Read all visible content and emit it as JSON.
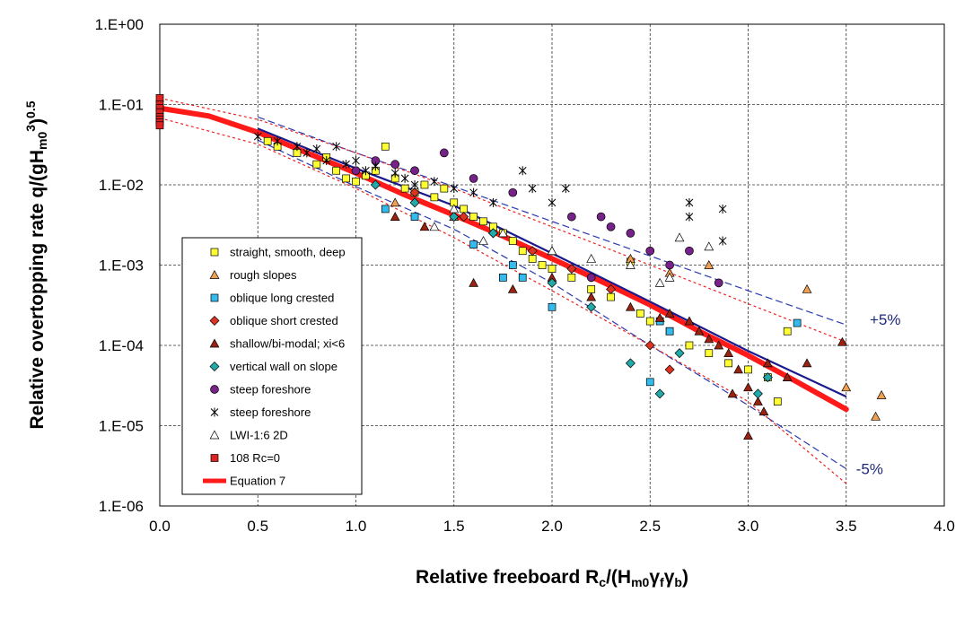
{
  "chart_data": {
    "type": "scatter",
    "xlabel": "Relative freeboard R_c/(H_m0 γ_f γ_b)",
    "xlabel_parts": {
      "main": "Relative freeboard R",
      "sub1": "c",
      "mid": "/(H",
      "sub2": "m0",
      "gammas": "γ",
      "sub3": "f",
      "gamma2": "γ",
      "sub4": "b",
      "close": ")"
    },
    "ylabel": "Relative overtopping rate q/(gH_m0^3)^0.5",
    "ylabel_parts": {
      "main": "Relative overtopping rate q/(gH",
      "sub": "m0",
      "sup": "3",
      "close": ")",
      "sup2": "0.5"
    },
    "x_ticks": [
      "0.0",
      "0.5",
      "1.0",
      "1.5",
      "2.0",
      "2.5",
      "3.0",
      "3.5",
      "4.0"
    ],
    "y_ticks": [
      "1.E+00",
      "1.E-01",
      "1.E-02",
      "1.E-03",
      "1.E-04",
      "1.E-05",
      "1.E-06"
    ],
    "xlim": [
      0,
      4
    ],
    "ylim_log10": [
      -6,
      0
    ],
    "y_scale": "log",
    "grid": true,
    "legend_position": "left-center",
    "annotations": {
      "plus": "+5%",
      "minus": "-5%"
    },
    "series": [
      {
        "name": "straight, smooth, deep",
        "marker": "square",
        "color": "#ffff33",
        "points": [
          [
            0.55,
            0.035
          ],
          [
            0.6,
            0.03
          ],
          [
            0.7,
            0.025
          ],
          [
            0.8,
            0.018
          ],
          [
            0.85,
            0.022
          ],
          [
            0.9,
            0.015
          ],
          [
            0.95,
            0.012
          ],
          [
            1.0,
            0.011
          ],
          [
            1.05,
            0.013
          ],
          [
            1.1,
            0.015
          ],
          [
            1.15,
            0.03
          ],
          [
            1.2,
            0.012
          ],
          [
            1.25,
            0.009
          ],
          [
            1.3,
            0.008
          ],
          [
            1.35,
            0.01
          ],
          [
            1.4,
            0.007
          ],
          [
            1.45,
            0.009
          ],
          [
            1.5,
            0.006
          ],
          [
            1.55,
            0.005
          ],
          [
            1.6,
            0.004
          ],
          [
            1.65,
            0.0035
          ],
          [
            1.7,
            0.003
          ],
          [
            1.75,
            0.0025
          ],
          [
            1.8,
            0.002
          ],
          [
            1.85,
            0.0015
          ],
          [
            1.9,
            0.0012
          ],
          [
            1.95,
            0.001
          ],
          [
            2.0,
            0.0009
          ],
          [
            2.1,
            0.0007
          ],
          [
            2.2,
            0.0005
          ],
          [
            2.3,
            0.0004
          ],
          [
            2.4,
            0.0011
          ],
          [
            2.45,
            0.00025
          ],
          [
            2.5,
            0.0002
          ],
          [
            2.6,
            0.00015
          ],
          [
            2.7,
            0.0001
          ],
          [
            2.8,
            8e-05
          ],
          [
            2.9,
            6e-05
          ],
          [
            3.0,
            5e-05
          ],
          [
            3.1,
            4e-05
          ],
          [
            3.15,
            2e-05
          ],
          [
            3.2,
            0.00015
          ]
        ]
      },
      {
        "name": "rough slopes",
        "marker": "triangle",
        "color": "#f0a050",
        "points": [
          [
            1.2,
            0.006
          ],
          [
            1.5,
            0.004
          ],
          [
            2.0,
            0.0015
          ],
          [
            2.4,
            0.0012
          ],
          [
            2.6,
            0.0008
          ],
          [
            2.8,
            0.001
          ],
          [
            3.3,
            0.0005
          ],
          [
            3.5,
            3e-05
          ],
          [
            3.65,
            1.3e-05
          ],
          [
            3.68,
            2.4e-05
          ]
        ]
      },
      {
        "name": "oblique long crested",
        "marker": "square",
        "color": "#33bbee",
        "points": [
          [
            1.15,
            0.005
          ],
          [
            1.3,
            0.004
          ],
          [
            1.6,
            0.0018
          ],
          [
            1.75,
            0.0007
          ],
          [
            1.8,
            0.001
          ],
          [
            1.85,
            0.0007
          ],
          [
            2.0,
            0.0003
          ],
          [
            2.5,
            3.5e-05
          ],
          [
            2.55,
            0.0002
          ],
          [
            2.6,
            0.00015
          ],
          [
            3.25,
            0.00019
          ]
        ]
      },
      {
        "name": "oblique short crested",
        "marker": "diamond",
        "color": "#dd3322",
        "points": [
          [
            1.3,
            0.008
          ],
          [
            1.55,
            0.004
          ],
          [
            1.7,
            0.0025
          ],
          [
            1.9,
            0.0015
          ],
          [
            2.1,
            0.0009
          ],
          [
            2.3,
            0.0005
          ],
          [
            2.5,
            0.0001
          ],
          [
            2.6,
            5e-05
          ]
        ]
      },
      {
        "name": "shallow/bi-modal; xi<6",
        "marker": "triangle",
        "color": "#992211",
        "points": [
          [
            1.2,
            0.004
          ],
          [
            1.35,
            0.003
          ],
          [
            1.6,
            0.0006
          ],
          [
            1.8,
            0.0005
          ],
          [
            2.0,
            0.0007
          ],
          [
            2.2,
            0.0004
          ],
          [
            2.4,
            0.0003
          ],
          [
            2.55,
            0.00022
          ],
          [
            2.6,
            0.00025
          ],
          [
            2.7,
            0.0002
          ],
          [
            2.75,
            0.00015
          ],
          [
            2.8,
            0.00012
          ],
          [
            2.85,
            0.0001
          ],
          [
            2.9,
            8e-05
          ],
          [
            2.95,
            5e-05
          ],
          [
            3.0,
            3e-05
          ],
          [
            3.05,
            2e-05
          ],
          [
            3.1,
            6e-05
          ],
          [
            3.2,
            4e-05
          ],
          [
            3.3,
            6e-05
          ],
          [
            3.48,
            0.00011
          ],
          [
            3.0,
            7.5e-06
          ],
          [
            3.08,
            1.5e-05
          ],
          [
            2.92,
            2.5e-05
          ]
        ]
      },
      {
        "name": "vertical wall on slope",
        "marker": "diamond",
        "color": "#22aaaa",
        "points": [
          [
            1.1,
            0.01
          ],
          [
            1.3,
            0.006
          ],
          [
            1.5,
            0.004
          ],
          [
            1.7,
            0.0025
          ],
          [
            2.0,
            0.0006
          ],
          [
            2.2,
            0.0003
          ],
          [
            2.4,
            6e-05
          ],
          [
            2.55,
            2.5e-05
          ],
          [
            2.65,
            8e-05
          ],
          [
            3.05,
            2.5e-05
          ],
          [
            3.1,
            4e-05
          ]
        ]
      },
      {
        "name": "steep foreshore",
        "marker": "circle",
        "color": "#772288",
        "points": [
          [
            1.0,
            0.015
          ],
          [
            1.1,
            0.02
          ],
          [
            1.2,
            0.018
          ],
          [
            1.3,
            0.015
          ],
          [
            1.45,
            0.025
          ],
          [
            1.6,
            0.012
          ],
          [
            1.8,
            0.008
          ],
          [
            2.1,
            0.004
          ],
          [
            2.25,
            0.004
          ],
          [
            2.3,
            0.003
          ],
          [
            2.4,
            0.0025
          ],
          [
            2.5,
            0.0015
          ],
          [
            2.6,
            0.001
          ],
          [
            2.7,
            0.0015
          ],
          [
            2.85,
            0.0006
          ],
          [
            2.2,
            0.0007
          ]
        ]
      },
      {
        "name": "steep foreshore",
        "marker": "star",
        "color": "#000000",
        "points": [
          [
            0.5,
            0.04
          ],
          [
            0.6,
            0.035
          ],
          [
            0.7,
            0.03
          ],
          [
            0.75,
            0.025
          ],
          [
            0.8,
            0.028
          ],
          [
            0.85,
            0.02
          ],
          [
            0.9,
            0.03
          ],
          [
            0.95,
            0.018
          ],
          [
            1.0,
            0.02
          ],
          [
            1.05,
            0.015
          ],
          [
            1.1,
            0.017
          ],
          [
            1.2,
            0.014
          ],
          [
            1.25,
            0.012
          ],
          [
            1.3,
            0.01
          ],
          [
            1.4,
            0.011
          ],
          [
            1.5,
            0.009
          ],
          [
            1.6,
            0.008
          ],
          [
            1.7,
            0.006
          ],
          [
            1.85,
            0.015
          ],
          [
            1.9,
            0.009
          ],
          [
            2.0,
            0.006
          ],
          [
            2.07,
            0.009
          ],
          [
            2.7,
            0.006
          ],
          [
            2.7,
            0.004
          ],
          [
            2.87,
            0.005
          ],
          [
            2.87,
            0.002
          ]
        ]
      },
      {
        "name": "LWI-1:6 2D",
        "marker": "triangle-open",
        "color": "#ffffff",
        "points": [
          [
            1.4,
            0.003
          ],
          [
            1.5,
            0.005
          ],
          [
            1.65,
            0.002
          ],
          [
            1.75,
            0.0025
          ],
          [
            2.0,
            0.0015
          ],
          [
            2.2,
            0.0012
          ],
          [
            2.4,
            0.001
          ],
          [
            2.55,
            0.0006
          ],
          [
            2.6,
            0.0007
          ],
          [
            2.65,
            0.0022
          ],
          [
            2.8,
            0.0017
          ]
        ]
      },
      {
        "name": "108 Rc=0",
        "marker": "square",
        "color": "#dd2222",
        "points": [
          [
            0.0,
            0.12
          ],
          [
            0.0,
            0.1
          ],
          [
            0.0,
            0.09
          ],
          [
            0.0,
            0.08
          ],
          [
            0.0,
            0.07
          ],
          [
            0.0,
            0.065
          ],
          [
            0.0,
            0.06
          ],
          [
            0.0,
            0.055
          ]
        ]
      }
    ],
    "lines": [
      {
        "name": "Equation 7",
        "color": "#ff1a1a",
        "style": "thick",
        "x": [
          0.0,
          0.25,
          0.5,
          0.75,
          1.0,
          1.25,
          1.5,
          1.75,
          2.0,
          2.25,
          2.5,
          2.75,
          3.0,
          3.25,
          3.5
        ],
        "y": [
          0.09,
          0.072,
          0.045,
          0.025,
          0.014,
          0.0075,
          0.0042,
          0.0023,
          0.0012,
          0.00063,
          0.00032,
          0.00015,
          7.5e-05,
          3.5e-05,
          1.6e-05
        ]
      },
      {
        "name": "",
        "color": "#1a1a8c",
        "style": "solid",
        "x": [
          0.5,
          1.0,
          1.5,
          2.0,
          2.5,
          3.0,
          3.5
        ],
        "y": [
          0.05,
          0.016,
          0.0055,
          0.0014,
          0.00035,
          8.5e-05,
          2.3e-05
        ]
      },
      {
        "name": "",
        "color": "#2a3ab0",
        "style": "dash",
        "x": [
          0.5,
          1.0,
          1.5,
          2.0,
          2.5,
          3.0,
          3.5
        ],
        "y": [
          0.07,
          0.025,
          0.0095,
          0.0035,
          0.0013,
          0.00048,
          0.00018
        ]
      },
      {
        "name": "",
        "color": "#2a3ab0",
        "style": "dash",
        "x": [
          0.5,
          1.0,
          1.5,
          2.0,
          2.5,
          3.0,
          3.5
        ],
        "y": [
          0.036,
          0.0095,
          0.0028,
          0.0006,
          0.0001,
          1.8e-05,
          2.9e-06
        ]
      },
      {
        "name": "",
        "color": "#ee2222",
        "style": "dot",
        "x": [
          0.0,
          0.5,
          1.0,
          1.5,
          2.0,
          2.5,
          3.0,
          3.5
        ],
        "y": [
          0.12,
          0.065,
          0.025,
          0.009,
          0.003,
          0.001,
          0.00033,
          0.00011
        ]
      },
      {
        "name": "",
        "color": "#ee2222",
        "style": "dot",
        "x": [
          0.0,
          0.5,
          1.0,
          1.5,
          2.0,
          2.5,
          3.0,
          3.5
        ],
        "y": [
          0.068,
          0.032,
          0.009,
          0.0022,
          0.00048,
          0.0001,
          2e-05,
          1.9e-06
        ]
      }
    ],
    "legend": [
      {
        "label": "straight, smooth, deep",
        "marker": "square",
        "color": "#ffff33"
      },
      {
        "label": "rough slopes",
        "marker": "triangle",
        "color": "#f0a050"
      },
      {
        "label": "oblique long crested",
        "marker": "square",
        "color": "#33bbee"
      },
      {
        "label": "oblique short crested",
        "marker": "diamond",
        "color": "#dd3322"
      },
      {
        "label": "shallow/bi-modal; xi<6",
        "marker": "triangle",
        "color": "#992211"
      },
      {
        "label": "vertical wall on slope",
        "marker": "diamond",
        "color": "#22aaaa"
      },
      {
        "label": "steep foreshore",
        "marker": "circle",
        "color": "#772288"
      },
      {
        "label": "steep foreshore",
        "marker": "star",
        "color": "#000000"
      },
      {
        "label": "LWI-1:6 2D",
        "marker": "triangle-open",
        "color": "#ffffff"
      },
      {
        "label": "108 Rc=0",
        "marker": "square",
        "color": "#dd2222"
      },
      {
        "label": "Equation 7",
        "marker": "line",
        "color": "#ff1a1a"
      }
    ]
  }
}
